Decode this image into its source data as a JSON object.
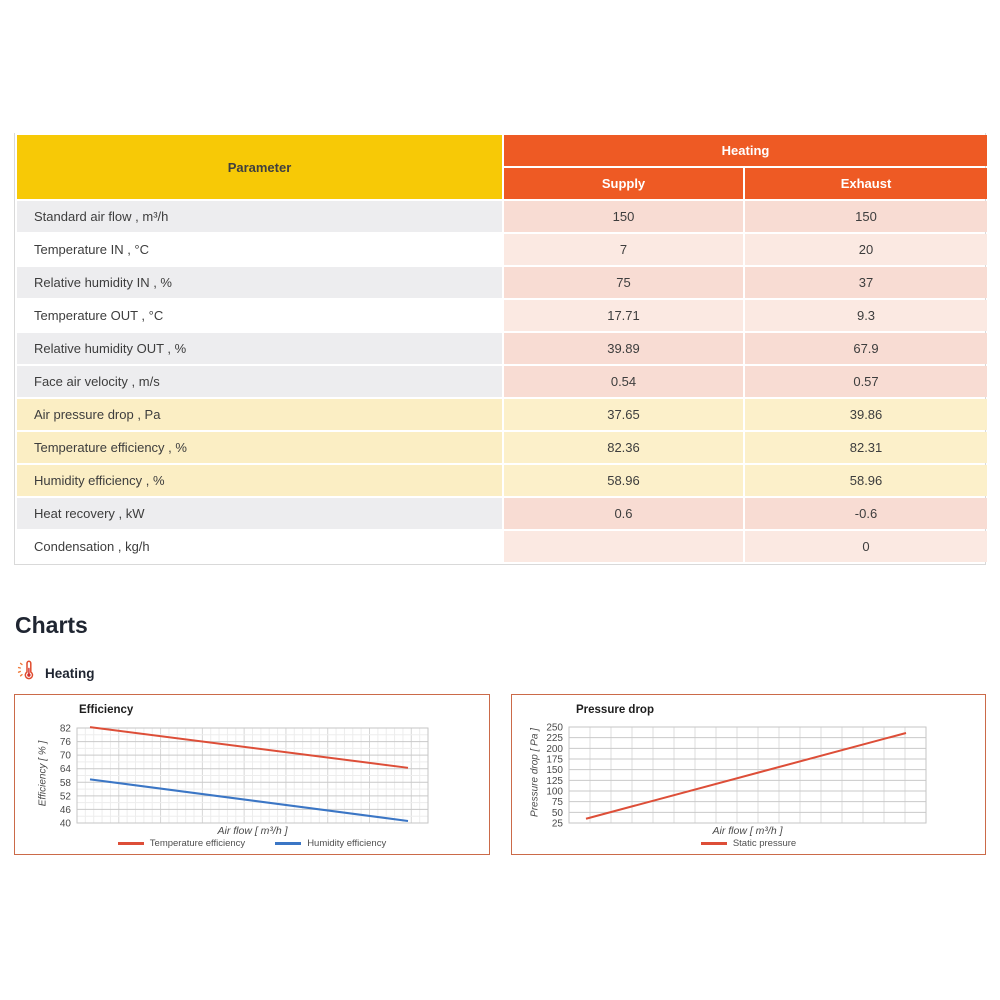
{
  "table": {
    "param_header": "Parameter",
    "group_header": "Heating",
    "col_headers": [
      "Supply",
      "Exhaust"
    ],
    "rows": [
      {
        "param": "Standard air flow , m³/h",
        "supply": "150",
        "exhaust": "150",
        "style": "gray"
      },
      {
        "param": "Temperature IN , °C",
        "supply": "7",
        "exhaust": "20",
        "style": "white"
      },
      {
        "param": "Relative humidity IN , %",
        "supply": "75",
        "exhaust": "37",
        "style": "gray"
      },
      {
        "param": "Temperature OUT , °C",
        "supply": "17.71",
        "exhaust": "9.3",
        "style": "white"
      },
      {
        "param": "Relative humidity OUT , %",
        "supply": "39.89",
        "exhaust": "67.9",
        "style": "gray"
      },
      {
        "param": "Face air velocity , m/s",
        "supply": "0.54",
        "exhaust": "0.57",
        "style": "gray"
      },
      {
        "param": "Air pressure drop , Pa",
        "supply": "37.65",
        "exhaust": "39.86",
        "style": "yellow"
      },
      {
        "param": "Temperature efficiency , %",
        "supply": "82.36",
        "exhaust": "82.31",
        "style": "yellow"
      },
      {
        "param": "Humidity efficiency , %",
        "supply": "58.96",
        "exhaust": "58.96",
        "style": "yellow"
      },
      {
        "param": "Heat recovery , kW",
        "supply": "0.6",
        "exhaust": "-0.6",
        "style": "gray"
      },
      {
        "param": "Condensation , kg/h",
        "supply": "",
        "exhaust": "0",
        "style": "white"
      }
    ]
  },
  "charts_section": {
    "heading": "Charts",
    "subheading": "Heating"
  },
  "chart_data": [
    {
      "type": "line",
      "title": "Efficiency",
      "xlabel": "Air flow [ m³/h ]",
      "ylabel": "Efficiency [ % ]",
      "y_ticks": [
        82,
        76,
        70,
        64,
        58,
        52,
        46,
        40
      ],
      "ylim": [
        40,
        82
      ],
      "x_tick_labels_visible": false,
      "grid": true,
      "legend_position": "bottom",
      "series": [
        {
          "name": "Temperature efficiency",
          "color": "#dd4e38",
          "values": [
            82.4,
            64.4
          ]
        },
        {
          "name": "Humidity efficiency",
          "color": "#3b76c5",
          "values": [
            59.3,
            40.9
          ]
        }
      ]
    },
    {
      "type": "line",
      "title": "Pressure drop",
      "xlabel": "Air flow [ m³/h ]",
      "ylabel": "Pressure drop [ Pa ]",
      "y_ticks": [
        250,
        225,
        200,
        175,
        150,
        125,
        100,
        75,
        50,
        25
      ],
      "ylim": [
        25,
        250
      ],
      "x_tick_labels_visible": false,
      "grid": true,
      "legend_position": "bottom",
      "series": [
        {
          "name": "Static pressure",
          "color": "#dd4e38",
          "values": [
            35,
            236
          ]
        }
      ]
    }
  ],
  "colors": {
    "header_yellow": "#f7c906",
    "header_orange": "#ee5a24",
    "row_pink_light": "#fbe9e2",
    "row_pink_dark": "#f8dcd3",
    "row_yellow": "#fcf0ca",
    "row_gray": "#ededef",
    "chart_border": "#cb6a49",
    "line_red": "#dd4e38",
    "line_blue": "#3b76c5"
  }
}
